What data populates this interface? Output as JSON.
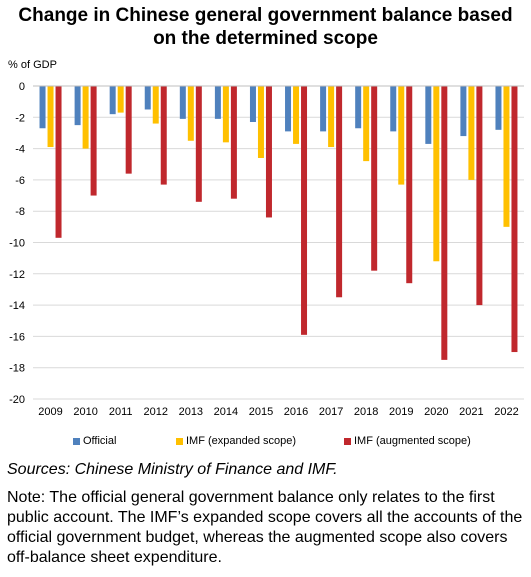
{
  "title_line1": "Change in Chinese general government balance based",
  "title_line2": "on the determined scope",
  "chart_data": {
    "type": "bar",
    "ylabel": "% of GDP",
    "ylim": [
      -20,
      0
    ],
    "yticks": [
      0,
      -2,
      -4,
      -6,
      -8,
      -10,
      -12,
      -14,
      -16,
      -18,
      -20
    ],
    "grid": true,
    "legend_position": "bottom",
    "categories": [
      "2009",
      "2010",
      "2011",
      "2012",
      "2013",
      "2014",
      "2015",
      "2016",
      "2017",
      "2018",
      "2019",
      "2020",
      "2021",
      "2022"
    ],
    "series": [
      {
        "name": "Official",
        "color": "#4f81bd",
        "values": [
          -2.7,
          -2.5,
          -1.8,
          -1.5,
          -2.1,
          -2.1,
          -2.3,
          -2.9,
          -2.9,
          -2.7,
          -2.9,
          -3.7,
          -3.2,
          -2.8
        ]
      },
      {
        "name": "IMF (expanded scope)",
        "color": "#ffc000",
        "values": [
          -3.9,
          -4.0,
          -1.7,
          -2.4,
          -3.5,
          -3.6,
          -4.6,
          -3.7,
          -3.9,
          -4.8,
          -6.3,
          -11.2,
          -6.0,
          -9.0
        ]
      },
      {
        "name": "IMF (augmented scope)",
        "color": "#c0282d",
        "values": [
          -9.7,
          -7.0,
          -5.6,
          -6.3,
          -7.4,
          -7.2,
          -8.4,
          -15.9,
          -13.5,
          -11.8,
          -12.6,
          -17.5,
          -14.0,
          -17.0
        ]
      }
    ]
  },
  "sources": "Sources: Chinese Ministry of Finance and IMF.",
  "note": "Note: The official general government balance only relates to the first public account. The IMF’s expanded scope covers all the accounts of the official government budget, whereas the augmented scope also covers off-balance sheet expenditure."
}
